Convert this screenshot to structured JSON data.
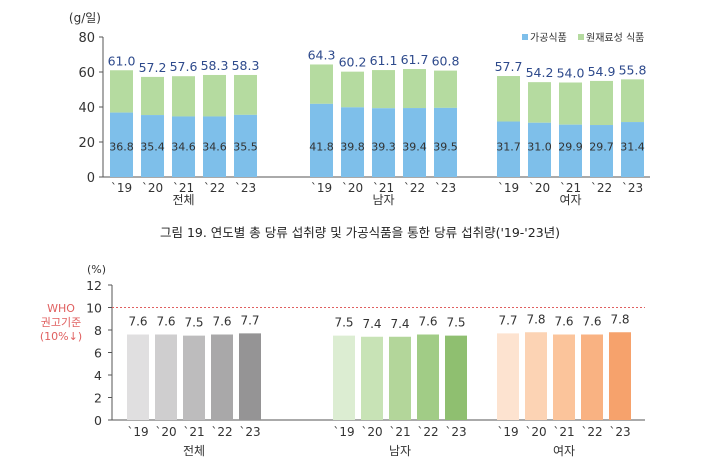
{
  "chart_data": [
    {
      "type": "bar",
      "stacked": true,
      "unit_label": "(g/일)",
      "ylim": [
        0,
        80
      ],
      "yticks": [
        0,
        20,
        40,
        60,
        80
      ],
      "grid": false,
      "legend_placement": "top-right",
      "groups": [
        "전체",
        "남자",
        "여자"
      ],
      "categories": [
        "`19",
        "`20",
        "`21",
        "`22",
        "`23"
      ],
      "series": [
        {
          "name": "가공식품",
          "color": "#7ebfea",
          "values": [
            [
              36.8,
              35.4,
              34.6,
              34.6,
              35.5
            ],
            [
              41.8,
              39.8,
              39.3,
              39.4,
              39.5
            ],
            [
              31.7,
              31.0,
              29.9,
              29.7,
              31.4
            ]
          ]
        },
        {
          "name": "원재료성 식품",
          "color": "#b5dba0"
        }
      ],
      "totals": [
        [
          61.0,
          57.2,
          57.6,
          58.3,
          58.3
        ],
        [
          64.3,
          60.2,
          61.1,
          61.7,
          60.8
        ],
        [
          57.7,
          54.2,
          54.0,
          54.9,
          55.8
        ]
      ],
      "total_label_color": "#2e4a8c",
      "caption": "그림 19. 연도별 총 당류 섭취량 및 가공식품을 통한 당류 섭취량('19-'23년)"
    },
    {
      "type": "bar",
      "unit_label": "(%)",
      "ylim": [
        0,
        12
      ],
      "yticks": [
        0,
        2,
        4,
        6,
        8,
        10,
        12
      ],
      "grid": false,
      "groups": [
        "전체",
        "남자",
        "여자"
      ],
      "categories": [
        "`19",
        "`20",
        "`21",
        "`22",
        "`23"
      ],
      "values": [
        [
          7.6,
          7.6,
          7.5,
          7.6,
          7.7
        ],
        [
          7.5,
          7.4,
          7.4,
          7.6,
          7.5
        ],
        [
          7.7,
          7.8,
          7.6,
          7.6,
          7.8
        ]
      ],
      "colors": [
        [
          "#e0dfe0",
          "#cfcecf",
          "#bdbcbd",
          "#a9a8a9",
          "#959495"
        ],
        [
          "#dcedd2",
          "#c8e3b6",
          "#b3d69a",
          "#a1cc86",
          "#8fbf70"
        ],
        [
          "#fde3d0",
          "#fcd3b4",
          "#fbc49b",
          "#f9b282",
          "#f6a26c"
        ]
      ],
      "reference_line": {
        "value": 10,
        "label": [
          "WHO",
          "권고기준",
          "(10%↓)"
        ],
        "color": "#e06060"
      }
    }
  ]
}
